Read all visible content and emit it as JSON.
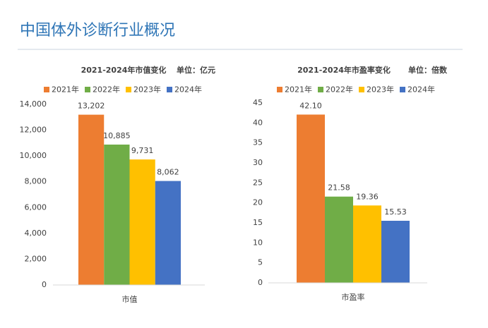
{
  "title": "中国体外诊断行业概况",
  "chart_data": [
    {
      "type": "bar",
      "title": "2021-2024年市值变化",
      "unit_label": "单位：亿元",
      "categories": [
        "市值"
      ],
      "series": [
        {
          "name": "2021年",
          "color": "#ED7D31",
          "values": [
            13202
          ],
          "value_labels": [
            "13,202"
          ]
        },
        {
          "name": "2022年",
          "color": "#70AD47",
          "values": [
            10885
          ],
          "value_labels": [
            "10,885"
          ]
        },
        {
          "name": "2023年",
          "color": "#FFC000",
          "values": [
            9731
          ],
          "value_labels": [
            "9,731"
          ]
        },
        {
          "name": "2024年",
          "color": "#4472C4",
          "values": [
            8062
          ],
          "value_labels": [
            "8,062"
          ]
        }
      ],
      "ylim": [
        0,
        14000
      ],
      "yticks": [
        0,
        {
          "value": 2000,
          "label": "2,000"
        },
        {
          "value": 4000,
          "label": "4,000"
        },
        {
          "value": 6000,
          "label": "6,000"
        },
        {
          "value": 8000,
          "label": "8,000"
        },
        {
          "value": 10000,
          "label": "10,000"
        },
        {
          "value": 12000,
          "label": "12,000"
        },
        {
          "value": 14000,
          "label": "14,000"
        }
      ],
      "grid": false,
      "legend": "top"
    },
    {
      "type": "bar",
      "title": "2021-2024年市盈率变化",
      "unit_label": "单位：倍数",
      "categories": [
        "市盈率"
      ],
      "series": [
        {
          "name": "2021年",
          "color": "#ED7D31",
          "values": [
            42.1
          ],
          "value_labels": [
            "42.10"
          ]
        },
        {
          "name": "2022年",
          "color": "#70AD47",
          "values": [
            21.58
          ],
          "value_labels": [
            "21.58"
          ]
        },
        {
          "name": "2023年",
          "color": "#FFC000",
          "values": [
            19.36
          ],
          "value_labels": [
            "19.36"
          ]
        },
        {
          "name": "2024年",
          "color": "#4472C4",
          "values": [
            15.53
          ],
          "value_labels": [
            "15.53"
          ]
        }
      ],
      "ylim": [
        0,
        45
      ],
      "yticks": [
        0,
        5,
        10,
        15,
        20,
        25,
        30,
        35,
        40,
        45
      ],
      "grid": false,
      "legend": "top"
    }
  ]
}
